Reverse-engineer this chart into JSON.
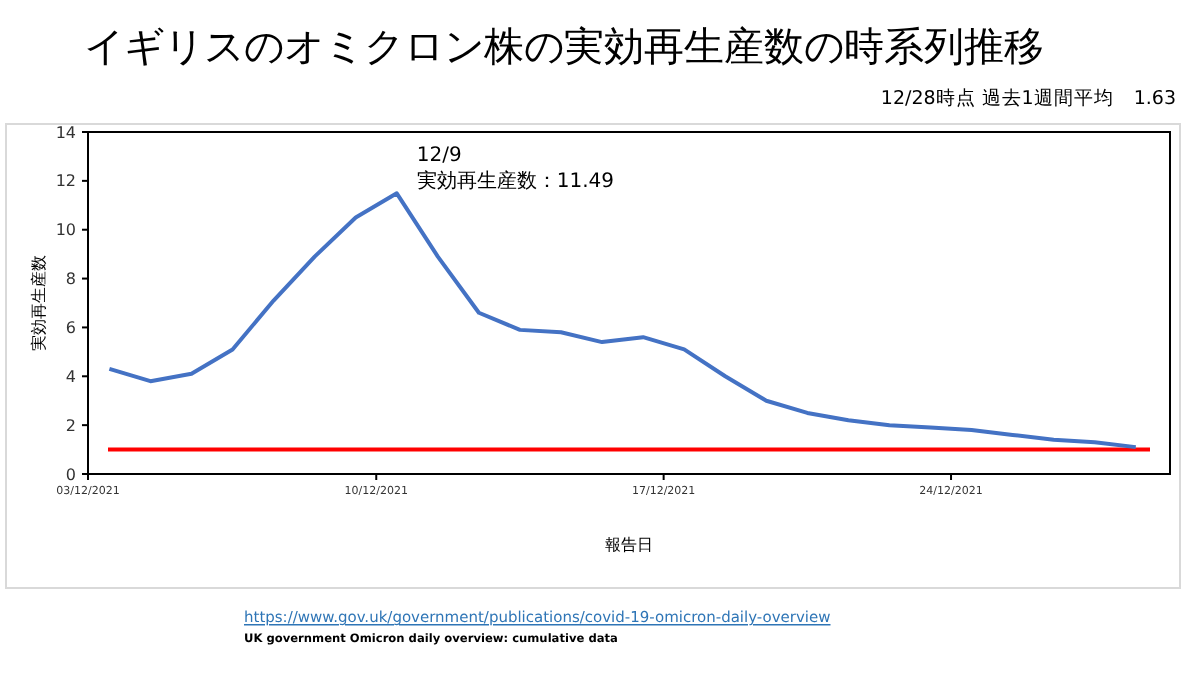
{
  "chart_data": {
    "type": "line",
    "title": "イギリスのオミクロン株の実効再生産数の時系列推移",
    "subtitle": "12/28時点 過去1週間平均　1.63",
    "xlabel": "報告日",
    "ylabel": "実効再生産数",
    "x": [
      "2021-12-02",
      "2021-12-03",
      "2021-12-04",
      "2021-12-05",
      "2021-12-06",
      "2021-12-07",
      "2021-12-08",
      "2021-12-09",
      "2021-12-10",
      "2021-12-11",
      "2021-12-12",
      "2021-12-13",
      "2021-12-14",
      "2021-12-15",
      "2021-12-16",
      "2021-12-17",
      "2021-12-18",
      "2021-12-19",
      "2021-12-20",
      "2021-12-21",
      "2021-12-22",
      "2021-12-23",
      "2021-12-24",
      "2021-12-25",
      "2021-12-26",
      "2021-12-27"
    ],
    "series": [
      {
        "color": "#4472c4",
        "values": [
          4.3,
          3.8,
          4.1,
          5.1,
          7.1,
          8.9,
          10.5,
          11.49,
          8.9,
          6.6,
          5.9,
          5.8,
          5.4,
          5.6,
          5.1,
          4.0,
          3.0,
          2.5,
          2.2,
          2.0,
          1.9,
          1.8,
          1.6,
          1.4,
          1.3,
          1.1
        ]
      }
    ],
    "xlim": [
      "2021-12-01T11:30",
      "2021-12-27T20:00"
    ],
    "xticks": [
      {
        "value": "2021-12-01T11:30",
        "label": "03/12/2021"
      },
      {
        "value": "2021-12-08T12:00",
        "label": "10/12/2021"
      },
      {
        "value": "2021-12-15T12:00",
        "label": "17/12/2021"
      },
      {
        "value": "2021-12-22T12:00",
        "label": "24/12/2021"
      }
    ],
    "ylim": [
      0,
      14
    ],
    "yticks": [
      0,
      2,
      4,
      6,
      8,
      10,
      12,
      14
    ],
    "grid": false,
    "marker": "none",
    "line_style": "solid",
    "ref_lines": [
      {
        "axis": "y",
        "value": 1,
        "color": "#ff0000"
      }
    ],
    "annotations": [
      {
        "text": "12/9\n実効再生産数：11.49",
        "x": "2021-12-09",
        "y": 11.49
      },
      "https://www.gov.uk/government/publications/covid-19-omicron-daily-overview",
      "UK government Omicron daily overview: cumulative data"
    ]
  }
}
